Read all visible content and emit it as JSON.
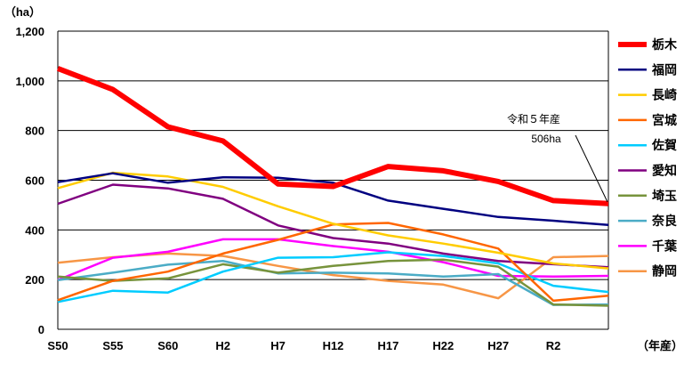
{
  "chart_data": {
    "type": "line",
    "y_unit": "（ha）",
    "x_unit": "（年産）",
    "categories": [
      "S50",
      "S55",
      "S60",
      "H2",
      "H7",
      "H12",
      "H17",
      "H22",
      "H27",
      "R2",
      "R5"
    ],
    "x_tick_labels": [
      "S50",
      "S55",
      "S60",
      "H2",
      "H7",
      "H12",
      "H17",
      "H22",
      "H27",
      "R2"
    ],
    "y_ticks": [
      "0",
      "200",
      "400",
      "600",
      "800",
      "1,000",
      "1,200"
    ],
    "ylim": [
      0,
      1200
    ],
    "grid": true,
    "legend_position": "right",
    "annotation": {
      "line1": "令和５年産",
      "line2": "506ha"
    },
    "series": [
      {
        "name": "栃木",
        "color": "#ff0000",
        "highlight": true,
        "values": [
          1050,
          965,
          815,
          758,
          585,
          575,
          655,
          638,
          595,
          518,
          506
        ]
      },
      {
        "name": "福岡",
        "color": "#000080",
        "values": [
          592,
          628,
          590,
          612,
          610,
          590,
          518,
          485,
          452,
          437,
          420
        ]
      },
      {
        "name": "長崎",
        "color": "#ffcc00",
        "values": [
          568,
          630,
          615,
          573,
          495,
          425,
          378,
          345,
          308,
          265,
          245
        ]
      },
      {
        "name": "宮城",
        "color": "#ff6600",
        "values": [
          117,
          195,
          232,
          305,
          360,
          422,
          428,
          382,
          325,
          115,
          135
        ]
      },
      {
        "name": "佐賀",
        "color": "#00ccff",
        "values": [
          110,
          155,
          148,
          232,
          288,
          290,
          310,
          295,
          265,
          175,
          150
        ]
      },
      {
        "name": "愛知",
        "color": "#800080",
        "values": [
          505,
          582,
          567,
          525,
          418,
          367,
          345,
          305,
          275,
          262,
          250
        ]
      },
      {
        "name": "埼玉",
        "color": "#77933c",
        "values": [
          212,
          195,
          205,
          262,
          228,
          255,
          275,
          280,
          252,
          100,
          95
        ]
      },
      {
        "name": "奈良",
        "color": "#4bacc6",
        "values": [
          198,
          228,
          260,
          275,
          225,
          228,
          225,
          212,
          222,
          98,
          100
        ]
      },
      {
        "name": "千葉",
        "color": "#ff00ff",
        "values": [
          198,
          288,
          312,
          362,
          362,
          335,
          312,
          270,
          215,
          212,
          215
        ]
      },
      {
        "name": "静岡",
        "color": "#f79646",
        "values": [
          268,
          290,
          305,
          295,
          255,
          218,
          195,
          180,
          125,
          290,
          295
        ]
      }
    ]
  }
}
